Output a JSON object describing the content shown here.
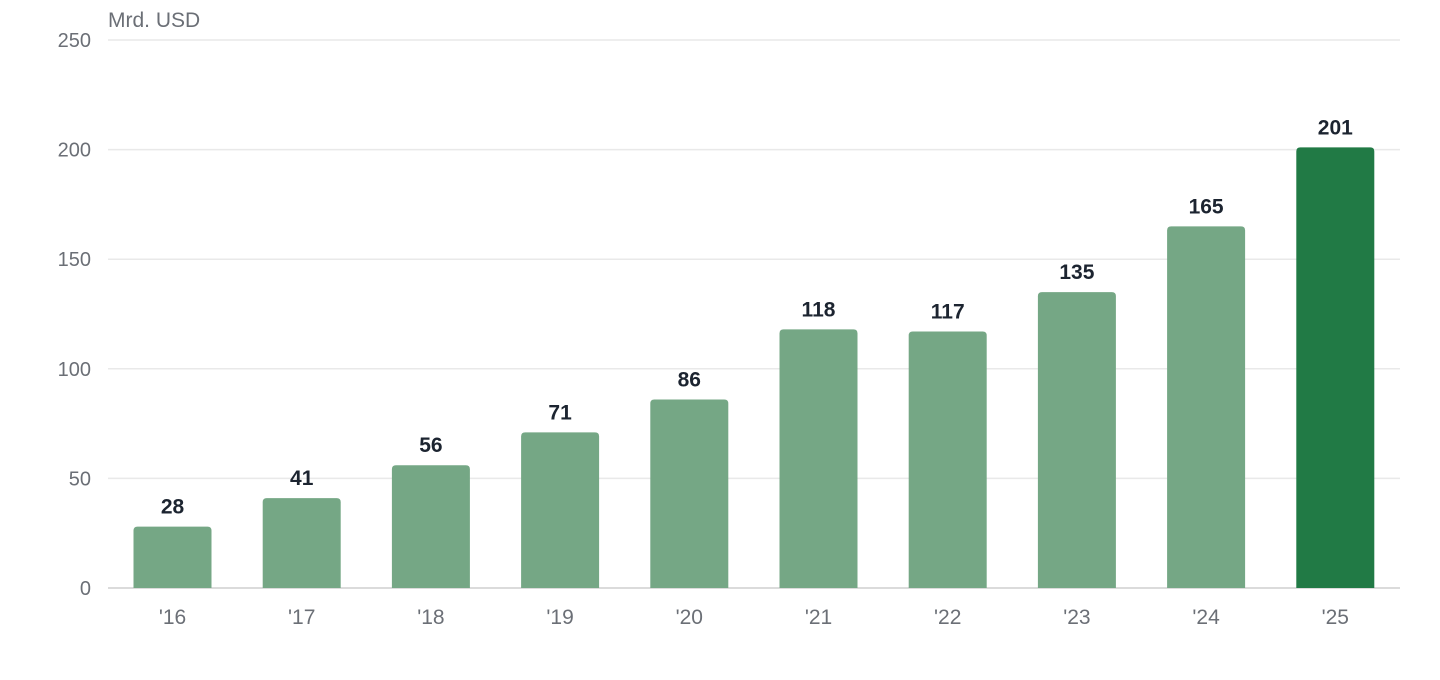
{
  "chart_data": {
    "type": "bar",
    "unit_label": "Mrd. USD",
    "categories": [
      "'16",
      "'17",
      "'18",
      "'19",
      "'20",
      "'21",
      "'22",
      "'23",
      "'24",
      "'25"
    ],
    "values": [
      28,
      41,
      56,
      71,
      86,
      118,
      117,
      135,
      165,
      201
    ],
    "ylim": [
      0,
      250
    ],
    "y_ticks": [
      0,
      50,
      100,
      150,
      200,
      250
    ],
    "grid": true,
    "highlight_index": 9,
    "colors": {
      "bar": "#75a785",
      "highlight": "#217a45",
      "grid": "#e9e9e9",
      "tick_text": "#6b6f76",
      "label_text": "#1c2430"
    }
  }
}
